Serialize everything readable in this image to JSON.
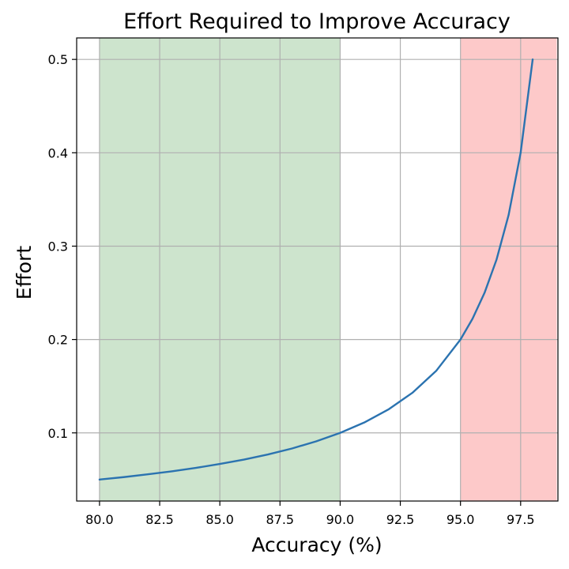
{
  "chart_data": {
    "type": "line",
    "title": "Effort Required to Improve Accuracy",
    "xlabel": "Accuracy (%)",
    "ylabel": "Effort",
    "xlim": [
      79.05,
      99.05
    ],
    "ylim": [
      0.027,
      0.523
    ],
    "grid": true,
    "x_ticks": [
      80.0,
      82.5,
      85.0,
      87.5,
      90.0,
      92.5,
      95.0,
      97.5
    ],
    "x_tick_labels": [
      "80.0",
      "82.5",
      "85.0",
      "87.5",
      "90.0",
      "92.5",
      "95.0",
      "97.5"
    ],
    "y_ticks": [
      0.1,
      0.2,
      0.3,
      0.4,
      0.5
    ],
    "y_tick_labels": [
      "0.1",
      "0.2",
      "0.3",
      "0.4",
      "0.5"
    ],
    "shaded_regions": [
      {
        "x_start": 80.0,
        "x_end": 90.0,
        "color": "#cde4cd"
      },
      {
        "x_start": 95.0,
        "x_end": 99.0,
        "color": "#fdc9c9"
      }
    ],
    "series": [
      {
        "color": "#2b73b0",
        "x": [
          80,
          81,
          82,
          83,
          84,
          85,
          86,
          87,
          88,
          89,
          90,
          91,
          92,
          93,
          94,
          95,
          95.5,
          96,
          96.5,
          97,
          97.5,
          98
        ],
        "y": [
          0.05,
          0.0526,
          0.0556,
          0.0588,
          0.0625,
          0.0667,
          0.0714,
          0.0769,
          0.0833,
          0.0909,
          0.1,
          0.1111,
          0.125,
          0.1429,
          0.1667,
          0.2,
          0.2222,
          0.25,
          0.2857,
          0.3333,
          0.4,
          0.5
        ]
      }
    ]
  }
}
